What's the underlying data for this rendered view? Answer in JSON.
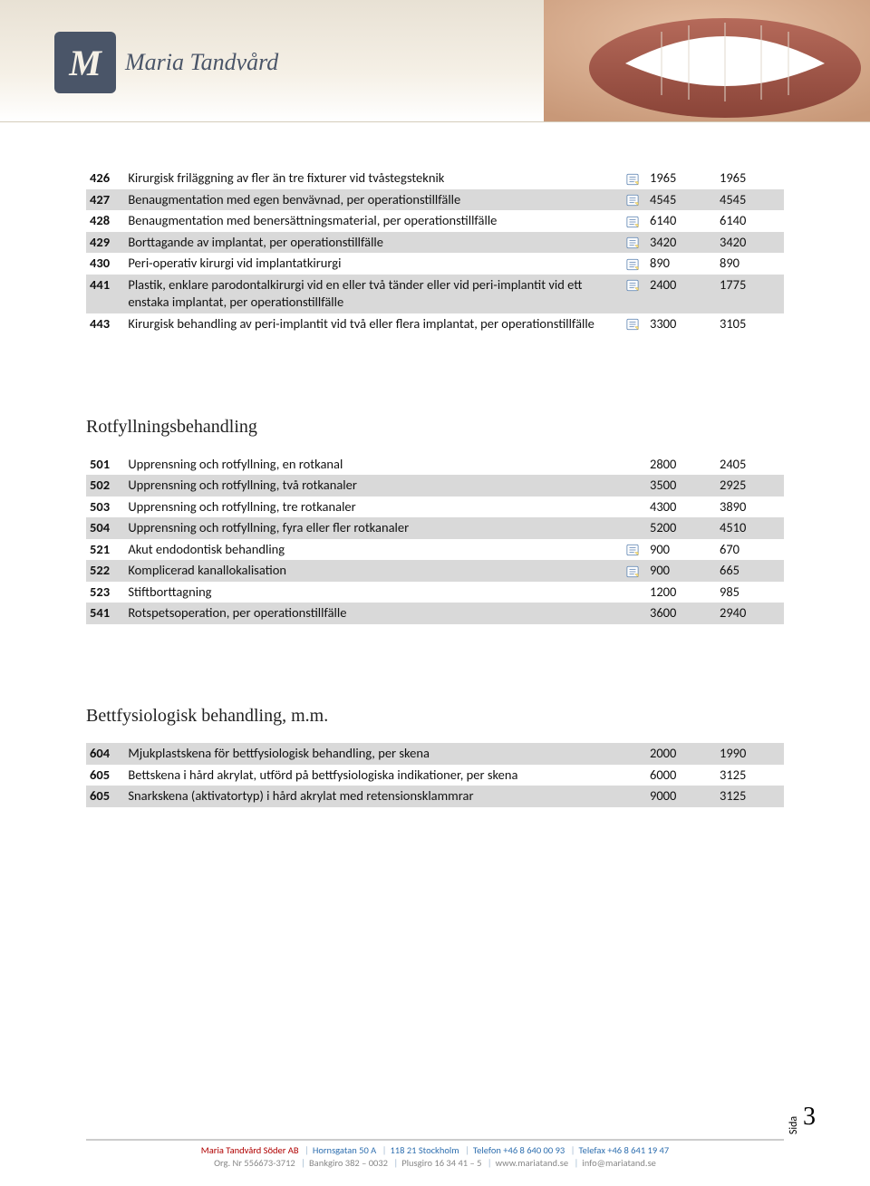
{
  "logo": {
    "initial": "M",
    "text": "Maria Tandvård"
  },
  "table1": {
    "rows": [
      {
        "code": "426",
        "desc": "Kirurgisk friläggning av fler än tre fixturer vid tvåstegsteknik",
        "icon": true,
        "p1": "1965",
        "p2": "1965",
        "shade": false
      },
      {
        "code": "427",
        "desc": "Benaugmentation med egen benvävnad, per operationstillfälle",
        "icon": true,
        "p1": "4545",
        "p2": "4545",
        "shade": true
      },
      {
        "code": "428",
        "desc": "Benaugmentation med benersättningsmaterial, per operationstillfälle",
        "icon": true,
        "p1": "6140",
        "p2": "6140",
        "shade": false
      },
      {
        "code": "429",
        "desc": "Borttagande av implantat, per operationstillfälle",
        "icon": true,
        "p1": "3420",
        "p2": "3420",
        "shade": true
      },
      {
        "code": "430",
        "desc": "Peri-operativ kirurgi vid implantatkirurgi",
        "icon": true,
        "p1": "890",
        "p2": "890",
        "shade": false
      },
      {
        "code": "441",
        "desc": "Plastik, enklare parodontalkirurgi vid en eller två tänder eller vid peri-implantit vid ett enstaka implantat, per operationstillfälle",
        "icon": true,
        "p1": "2400",
        "p2": "1775",
        "shade": true
      },
      {
        "code": "443",
        "desc": "Kirurgisk behandling av peri-implantit vid två eller flera implantat, per operationstillfälle",
        "icon": true,
        "p1": "3300",
        "p2": "3105",
        "shade": false
      }
    ]
  },
  "section2": {
    "heading": "Rotfyllningsbehandling"
  },
  "table2": {
    "rows": [
      {
        "code": "501",
        "desc": "Upprensning och rotfyllning, en rotkanal",
        "icon": false,
        "p1": "2800",
        "p2": "2405",
        "shade": false
      },
      {
        "code": "502",
        "desc": "Upprensning och rotfyllning, två rotkanaler",
        "icon": false,
        "p1": "3500",
        "p2": "2925",
        "shade": true
      },
      {
        "code": "503",
        "desc": "Upprensning och rotfyllning, tre rotkanaler",
        "icon": false,
        "p1": "4300",
        "p2": "3890",
        "shade": false
      },
      {
        "code": "504",
        "desc": "Upprensning och rotfyllning, fyra eller fler rotkanaler",
        "icon": false,
        "p1": "5200",
        "p2": "4510",
        "shade": true
      },
      {
        "code": "521",
        "desc": "Akut endodontisk behandling",
        "icon": true,
        "p1": "900",
        "p2": "670",
        "shade": false
      },
      {
        "code": "522",
        "desc": "Komplicerad kanallokalisation",
        "icon": true,
        "p1": "900",
        "p2": "665",
        "shade": true
      },
      {
        "code": "523",
        "desc": "Stiftborttagning",
        "icon": false,
        "p1": "1200",
        "p2": "985",
        "shade": false
      },
      {
        "code": "541",
        "desc": "Rotspetsoperation, per operationstillfälle",
        "icon": false,
        "p1": "3600",
        "p2": "2940",
        "shade": true
      }
    ]
  },
  "section3": {
    "heading": "Bettfysiologisk behandling, m.m."
  },
  "table3": {
    "rows": [
      {
        "code": "604",
        "desc": "Mjukplastskena för bettfysiologisk behandling, per skena",
        "icon": false,
        "p1": "2000",
        "p2": "1990",
        "shade": true
      },
      {
        "code": "605",
        "desc": "Bettskena i hård akrylat, utförd på bettfysiologiska indikationer, per skena",
        "icon": false,
        "p1": "6000",
        "p2": "3125",
        "shade": false
      },
      {
        "code": "605",
        "desc": "Snarkskena (aktivatortyp) i hård akrylat med retensionsklammrar",
        "icon": false,
        "p1": "9000",
        "p2": "3125",
        "shade": true
      }
    ]
  },
  "page": {
    "sida": "Sida",
    "num": "3"
  },
  "footer": {
    "company": "Maria Tandvård Söder AB",
    "addr1": "Hornsgatan 50 A",
    "addr2": "118 21 Stockholm",
    "phone": "Telefon +46  8 640 00 93",
    "fax": "Telefax +46 8 641 19 47",
    "org": "Org. Nr 556673-3712",
    "bank": "Bankgiro 382 – 0032",
    "plus": "Plusgiro 16 34 41 – 5",
    "web": "www.mariatand.se",
    "email": "info@mariatand.se"
  },
  "colors": {
    "shade": "#d9d9d9",
    "footer_blue": "#3070b0",
    "footer_red": "#b00000",
    "footer_gray": "#888888"
  }
}
